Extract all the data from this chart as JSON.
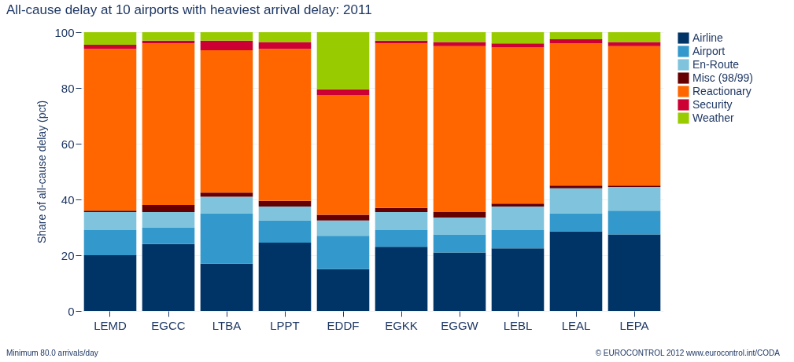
{
  "chart_data": {
    "type": "bar",
    "stacked": true,
    "title": "All-cause delay at 10 airports with heaviest arrival delay: 2011",
    "ylabel": "Share of all-cause delay (pct)",
    "categories": [
      "LEMD",
      "EGCC",
      "LTBA",
      "LPPT",
      "EDDF",
      "EGKK",
      "EGGW",
      "LEBL",
      "LEAL",
      "LEPA"
    ],
    "series": [
      {
        "name": "Airline",
        "color": "#003366",
        "values": [
          20,
          24,
          17,
          24.5,
          15,
          23,
          21,
          22.5,
          28.5,
          27.5
        ]
      },
      {
        "name": "Airport",
        "color": "#3399cc",
        "values": [
          9,
          6,
          18,
          8,
          12,
          6,
          6.5,
          6.5,
          6.5,
          8.5
        ]
      },
      {
        "name": "En-Route",
        "color": "#7fc4dc",
        "values": [
          6.5,
          5.5,
          6,
          5,
          5.5,
          6.5,
          6,
          8.5,
          9,
          8.5
        ]
      },
      {
        "name": "Misc (98/99)",
        "color": "#660000",
        "values": [
          0.5,
          2.5,
          1.5,
          2,
          2,
          1.5,
          2,
          1,
          1,
          0.5
        ]
      },
      {
        "name": "Reactionary",
        "color": "#ff6600",
        "values": [
          58,
          58,
          51,
          54.5,
          43,
          59,
          59.5,
          56,
          51,
          50
        ]
      },
      {
        "name": "Security",
        "color": "#cc0033",
        "values": [
          1.5,
          1,
          3.5,
          2.5,
          2,
          1,
          1.5,
          1.5,
          1.5,
          1.5
        ]
      },
      {
        "name": "Weather",
        "color": "#99cc00",
        "values": [
          4.5,
          3,
          3,
          3.5,
          20.5,
          3,
          3.5,
          4,
          2.5,
          3.5
        ]
      }
    ],
    "ylim": [
      0,
      100
    ],
    "yticks": [
      0,
      20,
      40,
      60,
      80,
      100
    ],
    "grid": "y",
    "legend": "right",
    "annotations": [
      "Minimum 80.0 arrivals/day",
      "© EUROCONTROL 2012 www.eurocontrol.int/CODA"
    ]
  }
}
